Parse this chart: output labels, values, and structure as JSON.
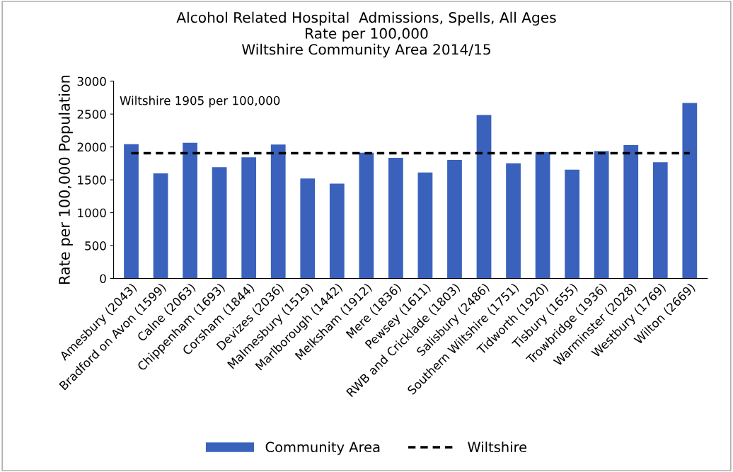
{
  "chart_data": {
    "type": "bar",
    "title": "Alcohol Related Hospital  Admissions, Spells, All Ages\nRate per 100,000\nWiltshire Community Area 2014/15",
    "ylabel": "Rate per 100,000 Population",
    "categories": [
      "Amesbury (2043)",
      "Bradford on Avon (1599)",
      "Calne (2063)",
      "Chippenham (1693)",
      "Corsham (1844)",
      "Devizes (2036)",
      "Malmesbury (1519)",
      "Marlborough (1442)",
      "Melksham (1912)",
      "Mere (1836)",
      "Pewsey (1611)",
      "RWB and Cricklade (1803)",
      "Salisbury (2486)",
      "Southern Wiltshire (1751)",
      "Tidworth (1920)",
      "Tisbury (1655)",
      "Trowbridge (1936)",
      "Warminster (2028)",
      "Westbury (1769)",
      "Wilton (2669)"
    ],
    "series": [
      {
        "name": "Community Area",
        "color": "#3a62bc",
        "values": [
          2043,
          1599,
          2063,
          1693,
          1844,
          2036,
          1519,
          1442,
          1912,
          1836,
          1611,
          1803,
          2486,
          1751,
          1920,
          1655,
          1936,
          2028,
          1769,
          2669
        ]
      },
      {
        "name": "Wiltshire",
        "type": "line",
        "color": "#000000",
        "line_style": "dashed",
        "values": [
          1905,
          1905,
          1905,
          1905,
          1905,
          1905,
          1905,
          1905,
          1905,
          1905,
          1905,
          1905,
          1905,
          1905,
          1905,
          1905,
          1905,
          1905,
          1905,
          1905
        ]
      }
    ],
    "annotations": [
      "Wiltshire 1905 per 100,000"
    ],
    "ylim": [
      0,
      3000
    ],
    "yticks": [
      0,
      500,
      1000,
      1500,
      2000,
      2500,
      3000
    ],
    "grid": false,
    "legend": "bottom"
  }
}
